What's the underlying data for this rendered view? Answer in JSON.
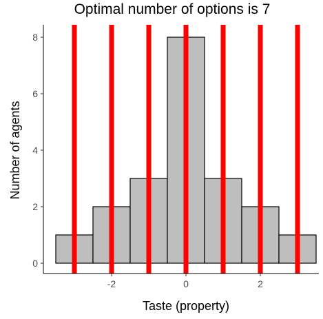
{
  "chart_data": {
    "type": "histogram",
    "title": "Optimal number of options is 7",
    "xlabel": "Taste (property)",
    "ylabel": "Number of agents",
    "xlim": [
      -3.5,
      3.5
    ],
    "ylim": [
      0,
      8
    ],
    "x_ticks": [
      -2,
      0,
      2
    ],
    "y_ticks": [
      0,
      2,
      4,
      6,
      8
    ],
    "bins": [
      {
        "x0": -3.5,
        "x1": -2.5,
        "count": 1
      },
      {
        "x0": -2.5,
        "x1": -1.5,
        "count": 2
      },
      {
        "x0": -1.5,
        "x1": -0.5,
        "count": 3
      },
      {
        "x0": -0.5,
        "x1": 0.5,
        "count": 8
      },
      {
        "x0": 0.5,
        "x1": 1.5,
        "count": 3
      },
      {
        "x0": 1.5,
        "x1": 2.5,
        "count": 2
      },
      {
        "x0": 2.5,
        "x1": 3.5,
        "count": 1
      }
    ],
    "options": [
      -3,
      -2,
      -1,
      0,
      1,
      2,
      3
    ],
    "bar_fill": "#bebebe",
    "bar_outline": "#000000",
    "option_line_color": "#ff0000",
    "grid": false
  }
}
